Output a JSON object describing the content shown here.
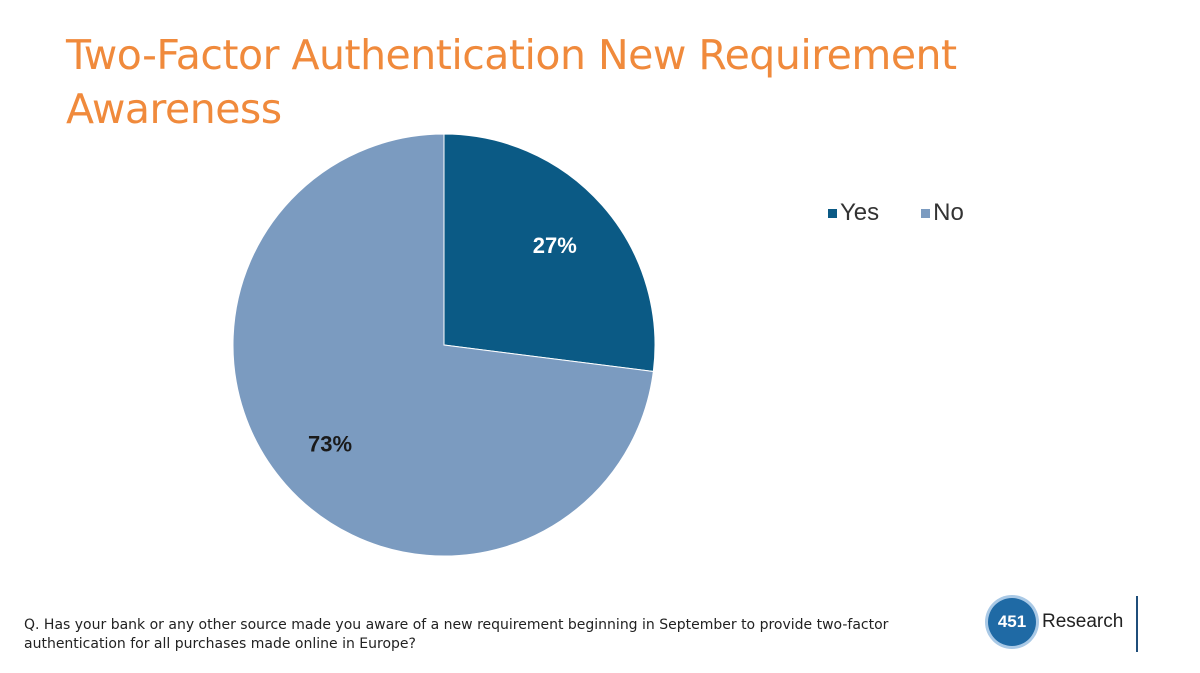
{
  "title": "Two-Factor Authentication New Requirement Awareness",
  "chart_data": {
    "type": "pie",
    "categories": [
      "Yes",
      "No"
    ],
    "values": [
      27,
      73
    ],
    "labels": [
      "27%",
      "73%"
    ],
    "colors": [
      "#0b5a85",
      "#7b9bc0"
    ],
    "label_colors": [
      "#ffffff",
      "#1a1a1a"
    ],
    "legend_position": "right",
    "legend": [
      "Yes",
      "No"
    ]
  },
  "footnote": "Q. Has your bank or any other source made you aware of a new requirement beginning in September to provide two-factor authentication for all purchases made online in Europe?",
  "logo": {
    "number": "451",
    "text": "Research"
  }
}
